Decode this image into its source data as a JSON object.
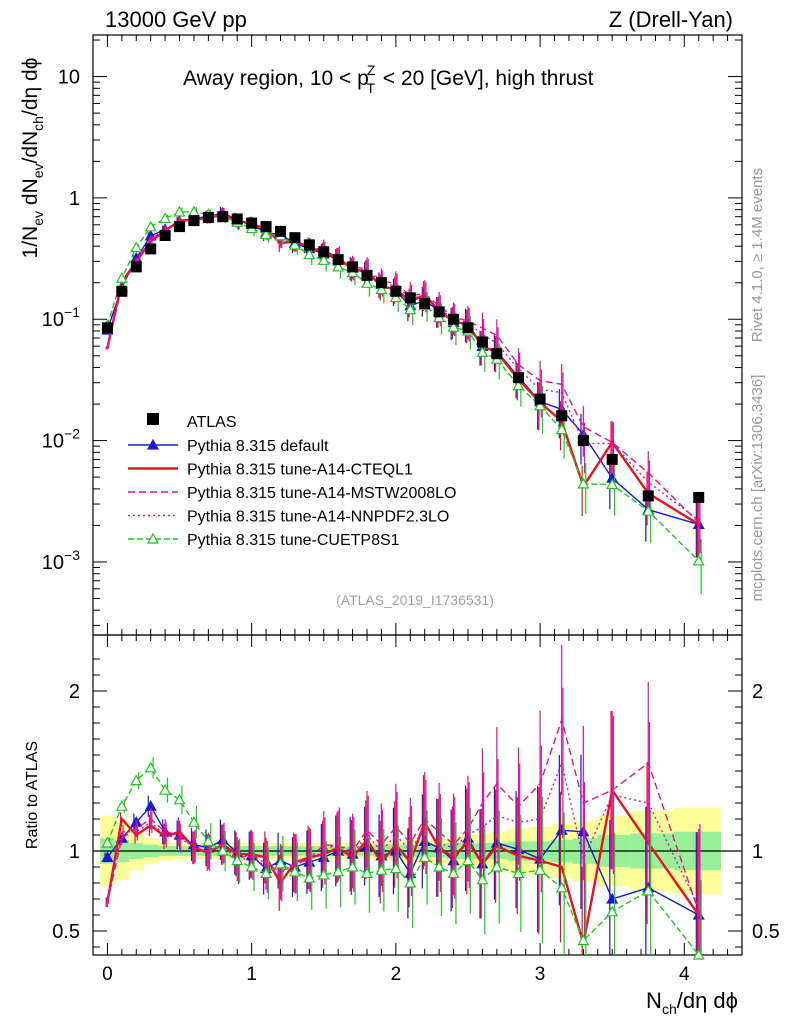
{
  "header": {
    "left_label": "13000 GeV pp",
    "right_label": "Z (Drell-Yan)"
  },
  "side_labels": {
    "rivet": "Rivet 4.1.0, ≥ 1.4M events",
    "mcplots": "mcplots.cern.ch [arXiv:1306.3436]"
  },
  "plot_title": {
    "prefix": "Away region, 10 < p",
    "sup": "Z",
    "sub": "T",
    "suffix": " < 20 [GeV], high thrust"
  },
  "watermark": "(ATLAS_2019_I1736531)",
  "ylabel_main": {
    "p1": "1/N",
    "s1": "ev",
    "p2": " dN",
    "s2": "ev",
    "p3": "/dN",
    "s3": "ch",
    "p4": "/dη dϕ"
  },
  "ylabel_ratio": "Ratio to ATLAS",
  "xlabel": {
    "p1": "N",
    "s1": "ch",
    "p2": "/dη dϕ"
  },
  "main_ticks": [
    {
      "base": "10",
      "exp": "−3",
      "value": 0.001
    },
    {
      "base": "10",
      "exp": "−2",
      "value": 0.01
    },
    {
      "base": "10",
      "exp": "−1",
      "value": 0.1
    },
    {
      "base": "1",
      "exp": "",
      "value": 1
    },
    {
      "base": "10",
      "exp": "",
      "value": 10
    }
  ],
  "ratio_ticks": [
    "0.5",
    "1",
    "2"
  ],
  "x_ticks": [
    "0",
    "1",
    "2",
    "3",
    "4"
  ],
  "colors": {
    "data": "#000000",
    "default": "#1a1acc",
    "cteql1": "#e6141e",
    "mstw": "#e6147f",
    "nnpdf": "#cc14cc",
    "cuetp8s1": "#1ec81e",
    "band_inner": "#99ee99",
    "band_outer": "#ffff99"
  },
  "chart_data": {
    "type": "line",
    "xlim": [
      -0.1,
      4.4
    ],
    "ylim_main": [
      0.00025,
      22
    ],
    "ylim_ratio": [
      0.35,
      2.35
    ],
    "x": [
      0,
      0.1,
      0.2,
      0.3,
      0.4,
      0.5,
      0.6,
      0.7,
      0.8,
      0.9,
      1.0,
      1.1,
      1.2,
      1.3,
      1.4,
      1.5,
      1.6,
      1.7,
      1.8,
      1.9,
      2.0,
      2.1,
      2.2,
      2.3,
      2.4,
      2.5,
      2.6,
      2.7,
      2.85,
      3.0,
      3.15,
      3.3,
      3.5,
      3.75,
      4.1
    ],
    "data": {
      "name": "ATLAS",
      "values": [
        0.085,
        0.17,
        0.27,
        0.38,
        0.49,
        0.58,
        0.65,
        0.69,
        0.7,
        0.67,
        0.62,
        0.58,
        0.53,
        0.47,
        0.41,
        0.36,
        0.31,
        0.27,
        0.23,
        0.2,
        0.17,
        0.15,
        0.135,
        0.115,
        0.1,
        0.085,
        0.065,
        0.052,
        0.033,
        0.022,
        0.016,
        0.01,
        0.007,
        0.0035,
        0.0034
      ]
    },
    "band_inner_half": [
      0.08,
      0.07,
      0.05,
      0.04,
      0.03,
      0.03,
      0.03,
      0.03,
      0.03,
      0.03,
      0.03,
      0.03,
      0.03,
      0.03,
      0.03,
      0.03,
      0.03,
      0.03,
      0.03,
      0.04,
      0.04,
      0.04,
      0.04,
      0.04,
      0.05,
      0.05,
      0.05,
      0.05,
      0.06,
      0.06,
      0.07,
      0.08,
      0.1,
      0.11,
      0.12
    ],
    "band_outer_half": [
      0.22,
      0.18,
      0.12,
      0.08,
      0.06,
      0.05,
      0.05,
      0.05,
      0.05,
      0.05,
      0.05,
      0.05,
      0.05,
      0.05,
      0.05,
      0.05,
      0.05,
      0.05,
      0.05,
      0.06,
      0.06,
      0.07,
      0.07,
      0.08,
      0.09,
      0.1,
      0.11,
      0.12,
      0.14,
      0.15,
      0.17,
      0.19,
      0.22,
      0.25,
      0.27
    ],
    "series": [
      {
        "key": "default",
        "name": "Pythia 8.315 default",
        "marker": "triangle-filled",
        "dash": "",
        "ratio": [
          0.96,
          1.08,
          1.18,
          1.28,
          1.12,
          1.1,
          1.04,
          1.02,
          1.07,
          0.99,
          0.97,
          0.89,
          0.94,
          0.9,
          0.93,
          0.96,
          1.0,
          0.98,
          1.03,
          0.97,
          1.0,
          0.86,
          1.06,
          1.02,
          0.94,
          1.08,
          0.92,
          1.05,
          1.01,
          0.95,
          1.13,
          1.12,
          0.7,
          0.77,
          0.6
        ]
      },
      {
        "key": "cteql1",
        "name": "Pythia 8.315 tune-A14-CTEQL1",
        "marker": "none",
        "dash": "",
        "ratio": [
          0.68,
          1.2,
          1.1,
          1.16,
          1.09,
          1.12,
          1.02,
          0.99,
          1.04,
          0.98,
          0.98,
          0.96,
          0.8,
          0.93,
          0.96,
          0.98,
          1.02,
          0.96,
          1.07,
          0.93,
          1.04,
          0.93,
          1.18,
          1.02,
          0.96,
          1.06,
          0.92,
          1.03,
          0.97,
          0.94,
          0.9,
          0.42,
          1.38,
          1.05,
          0.6
        ]
      },
      {
        "key": "mstw",
        "name": "Pythia 8.315 tune-A14-MSTW2008LO",
        "marker": "none",
        "dash": "7,4",
        "ratio": [
          0.68,
          1.08,
          1.14,
          1.2,
          1.12,
          1.1,
          1.02,
          1.0,
          1.04,
          0.95,
          0.98,
          0.92,
          0.87,
          0.92,
          0.95,
          1.04,
          1.03,
          1.0,
          1.13,
          1.04,
          1.15,
          1.05,
          1.2,
          1.12,
          1.04,
          1.14,
          1.3,
          1.42,
          1.28,
          1.42,
          1.82,
          1.3,
          1.38,
          1.55,
          0.62
        ]
      },
      {
        "key": "nnpdf",
        "name": "Pythia 8.315 tune-A14-NNPDF2.3LO",
        "marker": "none",
        "dash": "2,3",
        "ratio": [
          0.7,
          1.12,
          1.12,
          1.18,
          1.1,
          1.08,
          1.03,
          0.99,
          1.05,
          0.93,
          0.97,
          0.9,
          0.86,
          0.92,
          0.94,
          1.0,
          1.05,
          0.98,
          1.1,
          1.0,
          1.1,
          1.0,
          1.15,
          1.05,
          1.02,
          1.1,
          1.15,
          1.22,
          1.18,
          1.2,
          1.55,
          0.95,
          1.35,
          1.3,
          0.65
        ]
      },
      {
        "key": "cuetp8s1",
        "name": "Pythia 8.315 tune-CUETP8S1",
        "marker": "triangle-open",
        "dash": "6,3",
        "ratio": [
          1.05,
          1.28,
          1.44,
          1.52,
          1.38,
          1.32,
          1.18,
          1.06,
          1.0,
          0.94,
          0.9,
          0.86,
          0.92,
          0.87,
          0.83,
          0.85,
          0.87,
          0.9,
          0.86,
          0.88,
          0.89,
          0.8,
          0.96,
          0.9,
          0.86,
          0.94,
          0.82,
          0.9,
          0.86,
          0.88,
          0.77,
          0.44,
          0.62,
          0.75,
          0.3
        ]
      }
    ],
    "legend_position": "middle-left"
  }
}
